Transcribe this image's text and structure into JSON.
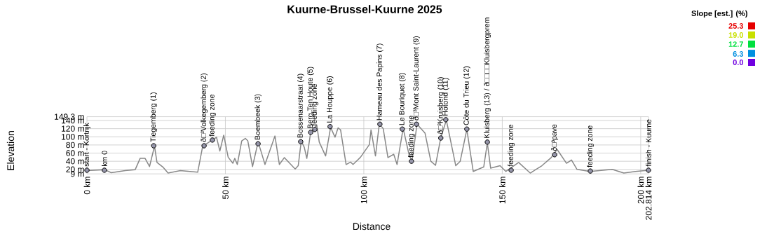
{
  "chart_data": {
    "type": "line",
    "title": "Kuurne-Brussel-Kuurne 2025",
    "xlabel": "Distance",
    "ylabel": "Elevation",
    "xlim": [
      0,
      202.814
    ],
    "ylim": [
      9,
      149.3
    ],
    "xticks": [
      {
        "value": 0,
        "label": "0 km"
      },
      {
        "value": 50,
        "label": "50 km"
      },
      {
        "value": 100,
        "label": "100 km"
      },
      {
        "value": 150,
        "label": "150 km"
      },
      {
        "value": 200,
        "label": "200 km"
      },
      {
        "value": 202.814,
        "label": "202.814 km"
      }
    ],
    "yticks": [
      {
        "value": 9,
        "label": "9 m"
      },
      {
        "value": 20,
        "label": "20 m"
      },
      {
        "value": 40,
        "label": "40 m"
      },
      {
        "value": 60,
        "label": "60 m"
      },
      {
        "value": 80,
        "label": "80 m"
      },
      {
        "value": 100,
        "label": "100 m"
      },
      {
        "value": 120,
        "label": "120 m"
      },
      {
        "value": 140,
        "label": "140 m"
      },
      {
        "value": 149.3,
        "label": "149.3 m"
      }
    ],
    "grid": true,
    "marker": "none",
    "line_style": "solid",
    "series": [
      {
        "color": "#888888",
        "x": [
          0,
          6.5,
          8.8,
          13.8,
          17.4,
          19.2,
          21,
          22.6,
          24.4,
          25.3,
          27.4,
          29.3,
          33.7,
          40,
          41.8,
          45.5,
          46.8,
          48,
          49.4,
          51,
          52.7,
          53.4,
          54.3,
          55.9,
          57.2,
          58.1,
          59.8,
          61.8,
          62.7,
          64.3,
          67.9,
          69.5,
          71.3,
          75.2,
          76.3,
          77.4,
          78.5,
          79.4,
          80.8,
          83,
          83.9,
          86.2,
          88,
          89.6,
          90.7,
          91.6,
          93.6,
          95.2,
          96.1,
          98.8,
          102,
          102.6,
          104.2,
          105.6,
          107,
          108.7,
          110.8,
          112,
          114.2,
          116.3,
          117.4,
          119.2,
          122.1,
          124.2,
          125.9,
          127.8,
          129.8,
          133.2,
          134.8,
          137.2,
          139.5,
          143.3,
          144.6,
          145.8,
          149.2,
          151.3,
          155.9,
          160.1,
          164.3,
          167.7,
          169.8,
          173.2,
          175,
          177,
          181.7,
          189.7,
          193.9,
          198.1,
          202.814
        ],
        "values": [
          17,
          19,
          12,
          17,
          19,
          47,
          47,
          27,
          77,
          37,
          26,
          11,
          17,
          13,
          77,
          93,
          99,
          65,
          104,
          50,
          35,
          47,
          32,
          90,
          96,
          90,
          27,
          87,
          68,
          32,
          102,
          32,
          49,
          21,
          29,
          90,
          74,
          47,
          111,
          129,
          87,
          53,
          123,
          99,
          122,
          117,
          32,
          38,
          32,
          50,
          81,
          117,
          53,
          132,
          120,
          49,
          57,
          32,
          121,
          57,
          40,
          131,
          109,
          40,
          30,
          98,
          141,
          29,
          40,
          118,
          15,
          26,
          85,
          23,
          29,
          15,
          37,
          11,
          29,
          49,
          69,
          35,
          43,
          20,
          15,
          20,
          11,
          15,
          18
        ]
      }
    ],
    "annotations": [
      {
        "text": "start - Kortrijk",
        "x": 0,
        "y": 18
      },
      {
        "text": "km 0",
        "x": 6.3,
        "y": 18
      },
      {
        "text": "Tiegemberg (1)",
        "x": 24.1,
        "y": 78
      },
      {
        "text": "ð□³Volkegemberg (2)",
        "x": 42.3,
        "y": 78
      },
      {
        "text": "feeding zone",
        "x": 45.3,
        "y": 92
      },
      {
        "text": "Boembeek (3)",
        "x": 61.8,
        "y": 83
      },
      {
        "text": "Bossenaarstraat (4)",
        "x": 77.2,
        "y": 88
      },
      {
        "text": "Berg Ten Houte (5)",
        "x": 80.8,
        "y": 111
      },
      {
        "text": "feeding zone",
        "x": 82.3,
        "y": 118
      },
      {
        "text": "La Houppe (6)",
        "x": 87.8,
        "y": 125
      },
      {
        "text": "Hameau des Papins (7)",
        "x": 105.8,
        "y": 131
      },
      {
        "text": "Le Bouriquet (8)",
        "x": 113.9,
        "y": 119
      },
      {
        "text": "feeding zone",
        "x": 117.2,
        "y": 40
      },
      {
        "text": "ð□³Mont Saint-Laurent (9)",
        "x": 119,
        "y": 131
      },
      {
        "text": "ð□³Kruisberg (10)",
        "x": 127.8,
        "y": 97
      },
      {
        "text": "Hotond (11)",
        "x": 129.6,
        "y": 142
      },
      {
        "text": "Côte du Trieu (12)",
        "x": 137.2,
        "y": 119
      },
      {
        "text": "Kluisberg (13) / ð□□□□Kluisbergprem",
        "x": 144.6,
        "y": 87
      },
      {
        "text": "feeding zone",
        "x": 153.2,
        "y": 18
      },
      {
        "text": "ð□³pave",
        "x": 168.9,
        "y": 56
      },
      {
        "text": "feeding zone",
        "x": 181.8,
        "y": 16
      },
      {
        "text": "finish - Kuurne",
        "x": 202.8,
        "y": 18
      }
    ],
    "clabel": "Slope [est.] (%)",
    "clim": [
      0,
      25.3
    ],
    "cticks": [
      {
        "value": 0,
        "label": "0.0"
      },
      {
        "value": 6.3,
        "label": "6.3"
      },
      {
        "value": 12.7,
        "label": "12.7"
      },
      {
        "value": 19.0,
        "label": "19.0"
      },
      {
        "value": 25.3,
        "label": "25.3"
      }
    ],
    "colors": [
      "#7000e0",
      "#0090e0",
      "#00e040",
      "#c8e000",
      "#e60000"
    ]
  }
}
